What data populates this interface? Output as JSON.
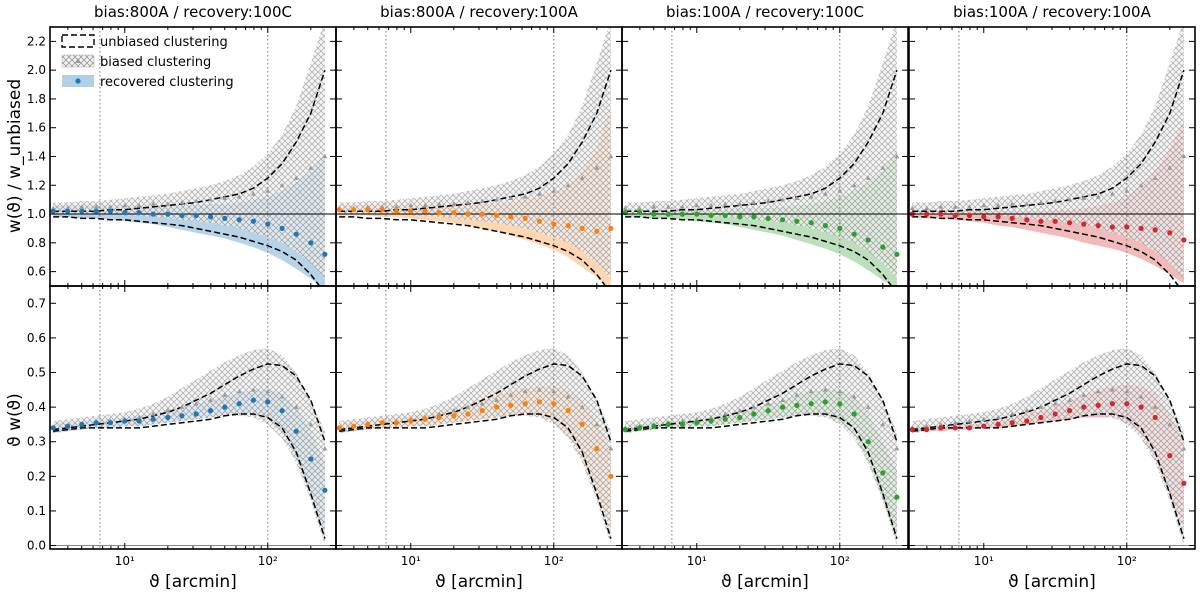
{
  "figure": {
    "panel_titles": [
      "bias:800A / recovery:100C",
      "bias:800A / recovery:100A",
      "bias:100A / recovery:100C",
      "bias:100A / recovery:100A"
    ],
    "xlabel": "ϑ [arcmin]",
    "ylabel_top": "w(ϑ) / w_unbiased",
    "ylabel_bottom": "ϑ w(ϑ)",
    "x_tick_labels": [
      "10¹",
      "10²"
    ],
    "top_y_tick_labels": [
      "0.6",
      "0.8",
      "1.0",
      "1.2",
      "1.4",
      "1.6",
      "1.8",
      "2.0",
      "2.2"
    ],
    "bottom_y_tick_labels": [
      "0.0",
      "0.1",
      "0.2",
      "0.3",
      "0.4",
      "0.5",
      "0.6",
      "0.7"
    ],
    "legend": {
      "unbiased": "unbiased clustering",
      "biased": "biased clustering",
      "recovered": "recovered clustering"
    },
    "colors": {
      "panel1": "#1f77b4",
      "panel2": "#ff7f0e",
      "panel3": "#2ca02c",
      "panel4": "#d62728",
      "biased": "#9a9a9a",
      "unbiased": "#000000"
    }
  },
  "chart_data": {
    "type": "line",
    "x_scale": "log",
    "xlim": [
      3,
      300
    ],
    "x_ticks": [
      10,
      100
    ],
    "vlines_x": [
      6.7,
      100
    ],
    "theta": [
      3.16,
      3.98,
      5.01,
      6.31,
      7.94,
      10,
      12.6,
      15.8,
      20,
      25.1,
      31.6,
      39.8,
      50.1,
      63.1,
      79.4,
      100,
      126,
      158,
      200,
      251
    ],
    "top_row": {
      "ylim": [
        0.5,
        2.3
      ],
      "y_ticks": [
        0.6,
        0.8,
        1.0,
        1.2,
        1.4,
        1.6,
        1.8,
        2.0,
        2.2
      ],
      "hline_y": 1.0
    },
    "bottom_row": {
      "ylim": [
        -0.01,
        0.75
      ],
      "y_ticks": [
        0.0,
        0.1,
        0.2,
        0.3,
        0.4,
        0.5,
        0.6,
        0.7
      ],
      "hline_y": 0.0
    },
    "ratio_shared": {
      "unbiased_upper": [
        1.02,
        1.02,
        1.02,
        1.02,
        1.03,
        1.03,
        1.04,
        1.05,
        1.06,
        1.07,
        1.08,
        1.1,
        1.12,
        1.14,
        1.18,
        1.25,
        1.35,
        1.5,
        1.7,
        2.0
      ],
      "unbiased_lower": [
        0.98,
        0.98,
        0.97,
        0.97,
        0.96,
        0.96,
        0.95,
        0.94,
        0.93,
        0.92,
        0.9,
        0.88,
        0.86,
        0.84,
        0.81,
        0.78,
        0.74,
        0.68,
        0.58,
        0.45
      ],
      "biased_values": [
        1.04,
        1.04,
        1.05,
        1.05,
        1.05,
        1.06,
        1.06,
        1.07,
        1.07,
        1.08,
        1.09,
        1.1,
        1.11,
        1.12,
        1.14,
        1.16,
        1.2,
        1.25,
        1.32,
        1.4
      ],
      "biased_band_upper": [
        1.08,
        1.08,
        1.09,
        1.09,
        1.1,
        1.11,
        1.12,
        1.13,
        1.14,
        1.16,
        1.18,
        1.2,
        1.23,
        1.27,
        1.33,
        1.42,
        1.55,
        1.75,
        2.05,
        2.35
      ],
      "biased_band_lower": [
        1.0,
        1.0,
        1.0,
        1.0,
        1.0,
        0.99,
        0.99,
        0.98,
        0.97,
        0.96,
        0.95,
        0.94,
        0.92,
        0.9,
        0.87,
        0.84,
        0.8,
        0.74,
        0.66,
        0.55
      ]
    },
    "ratio_recovered": [
      {
        "name": "bias:800A / recovery:100C",
        "color": "#1f77b4",
        "values": [
          1.02,
          1.02,
          1.02,
          1.02,
          1.02,
          1.01,
          1.01,
          1.0,
          1.0,
          0.99,
          0.99,
          0.98,
          0.97,
          0.96,
          0.95,
          0.93,
          0.9,
          0.86,
          0.8,
          0.72
        ],
        "band_upper": [
          1.06,
          1.06,
          1.06,
          1.06,
          1.06,
          1.06,
          1.06,
          1.06,
          1.06,
          1.06,
          1.06,
          1.07,
          1.07,
          1.08,
          1.1,
          1.12,
          1.16,
          1.22,
          1.3,
          1.42
        ],
        "band_lower": [
          0.98,
          0.98,
          0.97,
          0.97,
          0.96,
          0.95,
          0.94,
          0.93,
          0.91,
          0.89,
          0.87,
          0.85,
          0.83,
          0.8,
          0.77,
          0.73,
          0.68,
          0.62,
          0.55,
          0.48
        ]
      },
      {
        "name": "bias:800A / recovery:100A",
        "color": "#ff7f0e",
        "values": [
          1.03,
          1.03,
          1.03,
          1.03,
          1.02,
          1.02,
          1.02,
          1.01,
          1.01,
          1.0,
          1.0,
          0.99,
          0.98,
          0.97,
          0.95,
          0.93,
          0.92,
          0.9,
          0.88,
          0.9
        ],
        "band_upper": [
          1.06,
          1.06,
          1.06,
          1.06,
          1.06,
          1.06,
          1.06,
          1.06,
          1.06,
          1.06,
          1.07,
          1.07,
          1.08,
          1.1,
          1.12,
          1.15,
          1.2,
          1.3,
          1.45,
          1.75
        ],
        "band_lower": [
          0.99,
          0.99,
          0.99,
          0.98,
          0.98,
          0.97,
          0.96,
          0.95,
          0.94,
          0.92,
          0.9,
          0.88,
          0.85,
          0.82,
          0.79,
          0.75,
          0.7,
          0.63,
          0.56,
          0.48
        ]
      },
      {
        "name": "bias:100A / recovery:100C",
        "color": "#2ca02c",
        "values": [
          1.01,
          1.01,
          1.0,
          1.0,
          1.0,
          1.0,
          0.99,
          0.99,
          0.98,
          0.98,
          0.97,
          0.96,
          0.95,
          0.94,
          0.92,
          0.9,
          0.86,
          0.82,
          0.77,
          0.72
        ],
        "band_upper": [
          1.03,
          1.03,
          1.03,
          1.03,
          1.03,
          1.03,
          1.03,
          1.03,
          1.04,
          1.04,
          1.04,
          1.05,
          1.06,
          1.07,
          1.09,
          1.12,
          1.16,
          1.22,
          1.3,
          1.45
        ],
        "band_lower": [
          0.98,
          0.98,
          0.97,
          0.97,
          0.96,
          0.95,
          0.94,
          0.93,
          0.91,
          0.89,
          0.87,
          0.85,
          0.82,
          0.79,
          0.76,
          0.72,
          0.67,
          0.61,
          0.54,
          0.48
        ]
      },
      {
        "name": "bias:100A / recovery:100A",
        "color": "#d62728",
        "values": [
          1.0,
          1.0,
          1.0,
          0.99,
          0.99,
          0.98,
          0.98,
          0.97,
          0.96,
          0.95,
          0.95,
          0.94,
          0.93,
          0.92,
          0.91,
          0.91,
          0.9,
          0.89,
          0.87,
          0.82
        ],
        "band_upper": [
          1.02,
          1.02,
          1.02,
          1.02,
          1.02,
          1.02,
          1.02,
          1.02,
          1.02,
          1.02,
          1.03,
          1.03,
          1.04,
          1.06,
          1.08,
          1.12,
          1.2,
          1.3,
          1.45,
          1.65
        ],
        "band_lower": [
          0.98,
          0.97,
          0.97,
          0.96,
          0.95,
          0.94,
          0.92,
          0.91,
          0.89,
          0.87,
          0.85,
          0.83,
          0.8,
          0.78,
          0.76,
          0.73,
          0.69,
          0.64,
          0.58,
          0.52
        ]
      }
    ],
    "tw_shared": {
      "unbiased_upper": [
        0.335,
        0.34,
        0.345,
        0.35,
        0.355,
        0.36,
        0.365,
        0.375,
        0.385,
        0.4,
        0.42,
        0.44,
        0.465,
        0.49,
        0.51,
        0.525,
        0.52,
        0.49,
        0.42,
        0.3
      ],
      "unbiased_lower": [
        0.33,
        0.335,
        0.34,
        0.34,
        0.34,
        0.34,
        0.34,
        0.345,
        0.35,
        0.355,
        0.36,
        0.365,
        0.375,
        0.38,
        0.38,
        0.37,
        0.34,
        0.27,
        0.15,
        0.02
      ],
      "biased_values": [
        0.34,
        0.345,
        0.35,
        0.355,
        0.36,
        0.365,
        0.37,
        0.38,
        0.39,
        0.4,
        0.41,
        0.42,
        0.435,
        0.445,
        0.45,
        0.445,
        0.43,
        0.4,
        0.35,
        0.28
      ],
      "biased_band_upper": [
        0.36,
        0.365,
        0.37,
        0.375,
        0.38,
        0.385,
        0.395,
        0.41,
        0.43,
        0.455,
        0.48,
        0.505,
        0.53,
        0.55,
        0.565,
        0.57,
        0.55,
        0.5,
        0.42,
        0.33
      ],
      "biased_band_lower": [
        0.325,
        0.33,
        0.335,
        0.34,
        0.34,
        0.345,
        0.345,
        0.35,
        0.355,
        0.36,
        0.365,
        0.37,
        0.375,
        0.375,
        0.37,
        0.35,
        0.31,
        0.24,
        0.13,
        0.0
      ]
    },
    "tw_recovered": [
      {
        "name": "bias:800A / recovery:100C",
        "color": "#1f77b4",
        "values": [
          0.34,
          0.345,
          0.35,
          0.355,
          0.355,
          0.36,
          0.36,
          0.365,
          0.37,
          0.375,
          0.38,
          0.39,
          0.4,
          0.41,
          0.42,
          0.415,
          0.39,
          0.33,
          0.25,
          0.16
        ],
        "band_upper": [
          0.355,
          0.355,
          0.36,
          0.365,
          0.365,
          0.37,
          0.375,
          0.38,
          0.39,
          0.4,
          0.41,
          0.42,
          0.43,
          0.44,
          0.45,
          0.45,
          0.44,
          0.4,
          0.33,
          0.24
        ],
        "band_lower": [
          0.325,
          0.33,
          0.335,
          0.34,
          0.34,
          0.345,
          0.345,
          0.35,
          0.355,
          0.36,
          0.365,
          0.37,
          0.375,
          0.38,
          0.38,
          0.37,
          0.33,
          0.25,
          0.14,
          0.02
        ]
      },
      {
        "name": "bias:800A / recovery:100A",
        "color": "#ff7f0e",
        "values": [
          0.34,
          0.345,
          0.35,
          0.355,
          0.355,
          0.36,
          0.365,
          0.37,
          0.375,
          0.38,
          0.39,
          0.4,
          0.405,
          0.41,
          0.415,
          0.41,
          0.39,
          0.35,
          0.28,
          0.2
        ],
        "band_upper": [
          0.355,
          0.36,
          0.36,
          0.365,
          0.37,
          0.375,
          0.38,
          0.385,
          0.395,
          0.41,
          0.42,
          0.435,
          0.445,
          0.455,
          0.46,
          0.46,
          0.45,
          0.42,
          0.36,
          0.28
        ],
        "band_lower": [
          0.325,
          0.33,
          0.335,
          0.34,
          0.34,
          0.345,
          0.345,
          0.35,
          0.355,
          0.36,
          0.365,
          0.37,
          0.375,
          0.38,
          0.375,
          0.36,
          0.32,
          0.25,
          0.15,
          0.05
        ]
      },
      {
        "name": "bias:100A / recovery:100C",
        "color": "#2ca02c",
        "values": [
          0.335,
          0.34,
          0.345,
          0.35,
          0.35,
          0.355,
          0.36,
          0.365,
          0.37,
          0.38,
          0.39,
          0.4,
          0.405,
          0.41,
          0.415,
          0.41,
          0.38,
          0.3,
          0.21,
          0.14
        ],
        "band_upper": [
          0.345,
          0.35,
          0.355,
          0.36,
          0.36,
          0.365,
          0.37,
          0.375,
          0.385,
          0.395,
          0.41,
          0.42,
          0.435,
          0.445,
          0.45,
          0.45,
          0.43,
          0.38,
          0.3,
          0.22
        ],
        "band_lower": [
          0.325,
          0.33,
          0.335,
          0.34,
          0.34,
          0.345,
          0.345,
          0.35,
          0.355,
          0.36,
          0.365,
          0.37,
          0.375,
          0.38,
          0.375,
          0.36,
          0.32,
          0.24,
          0.13,
          0.02
        ]
      },
      {
        "name": "bias:100A / recovery:100A",
        "color": "#d62728",
        "values": [
          0.335,
          0.335,
          0.34,
          0.34,
          0.34,
          0.345,
          0.35,
          0.355,
          0.36,
          0.37,
          0.38,
          0.39,
          0.4,
          0.405,
          0.41,
          0.41,
          0.4,
          0.37,
          0.26,
          0.18
        ],
        "band_upper": [
          0.345,
          0.345,
          0.345,
          0.35,
          0.35,
          0.355,
          0.36,
          0.37,
          0.38,
          0.39,
          0.405,
          0.42,
          0.435,
          0.45,
          0.46,
          0.465,
          0.46,
          0.44,
          0.38,
          0.3
        ],
        "band_lower": [
          0.325,
          0.33,
          0.33,
          0.335,
          0.335,
          0.34,
          0.34,
          0.345,
          0.35,
          0.355,
          0.36,
          0.365,
          0.37,
          0.37,
          0.37,
          0.355,
          0.32,
          0.25,
          0.15,
          0.05
        ]
      }
    ]
  }
}
